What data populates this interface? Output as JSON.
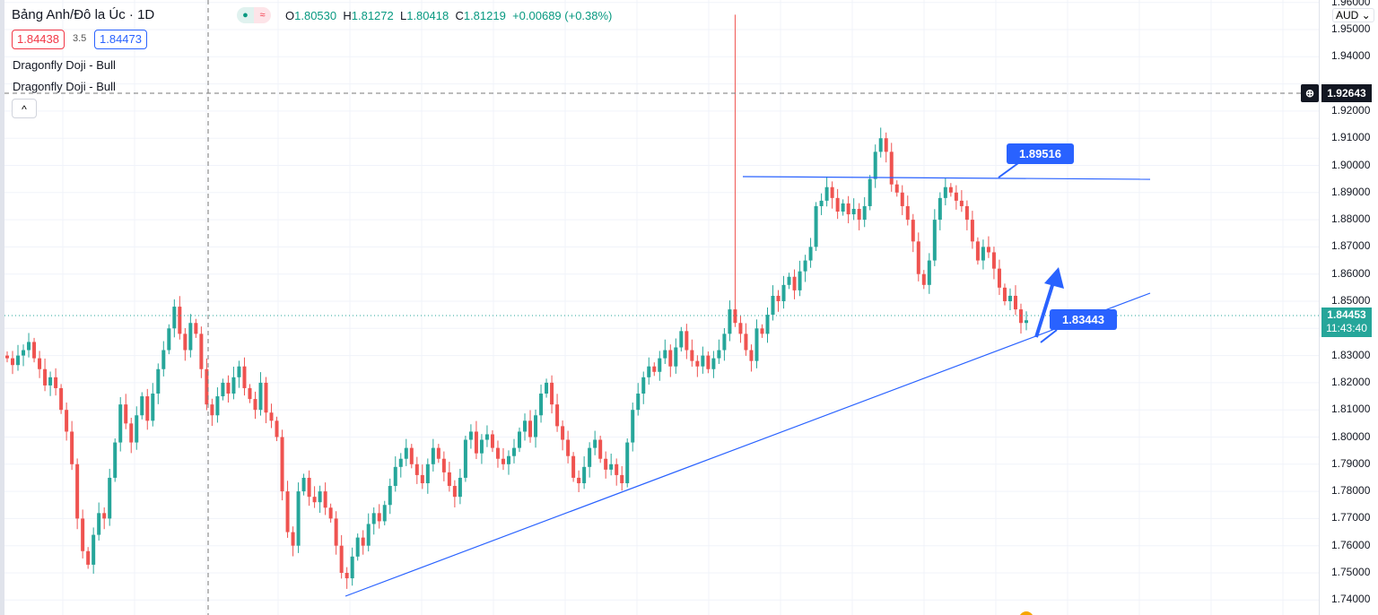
{
  "header": {
    "symbol": "Bảng Anh/Đô la Úc · 1D",
    "ohlc": {
      "o_label": "O",
      "o": "1.80530",
      "h_label": "H",
      "h": "1.81272",
      "l_label": "L",
      "l": "1.80418",
      "c_label": "C",
      "c": "1.81219",
      "change": "+0.00689 (+0.38%)"
    },
    "status_icon": "≈"
  },
  "quotes": {
    "sell": "1.84438",
    "spread": "3.5",
    "buy": "1.84473"
  },
  "patterns": [
    "Dragonfly Doji - Bull",
    "Dragonfly Doji - Bull"
  ],
  "collapse_icon": "^",
  "axis": {
    "currency": "AUD",
    "ticks": [
      "1.96000",
      "1.95000",
      "1.94000",
      "1.92000",
      "1.91000",
      "1.90000",
      "1.89000",
      "1.88000",
      "1.87000",
      "1.86000",
      "1.85000",
      "1.83000",
      "1.82000",
      "1.81000",
      "1.80000",
      "1.79000",
      "1.78000",
      "1.77000",
      "1.76000",
      "1.75000",
      "1.74000"
    ],
    "crosshair_price": "1.92643",
    "last_price": "1.84453",
    "countdown": "11:43:40"
  },
  "annotations": {
    "resistance_label": "1.89516",
    "support_label": "1.83443"
  },
  "colors": {
    "up": "#26a69a",
    "down": "#ef5350",
    "drawing": "#2962ff"
  },
  "chart_data": {
    "type": "candlestick",
    "ylim": [
      1.74,
      1.96
    ],
    "grid": true,
    "spike": {
      "index": 135,
      "high": 1.9555
    },
    "closes": [
      1.829,
      1.8265,
      1.83,
      1.832,
      1.835,
      1.829,
      1.825,
      1.819,
      1.822,
      1.818,
      1.81,
      1.802,
      1.79,
      1.77,
      1.758,
      1.753,
      1.764,
      1.772,
      1.77,
      1.785,
      1.798,
      1.812,
      1.805,
      1.798,
      1.808,
      1.815,
      1.806,
      1.816,
      1.825,
      1.832,
      1.84,
      1.848,
      1.838,
      1.832,
      1.842,
      1.838,
      1.825,
      1.812,
      1.808,
      1.815,
      1.82,
      1.816,
      1.822,
      1.826,
      1.818,
      1.814,
      1.81,
      1.82,
      1.809,
      1.806,
      1.8,
      1.78,
      1.765,
      1.76,
      1.78,
      1.785,
      1.778,
      1.776,
      1.78,
      1.774,
      1.77,
      1.76,
      1.75,
      1.748,
      1.756,
      1.763,
      1.76,
      1.768,
      1.772,
      1.769,
      1.775,
      1.782,
      1.789,
      1.792,
      1.796,
      1.79,
      1.786,
      1.783,
      1.79,
      1.796,
      1.792,
      1.787,
      1.782,
      1.778,
      1.785,
      1.799,
      1.802,
      1.794,
      1.799,
      1.801,
      1.796,
      1.792,
      1.79,
      1.793,
      1.796,
      1.802,
      1.806,
      1.8,
      1.808,
      1.816,
      1.82,
      1.812,
      1.804,
      1.799,
      1.793,
      1.785,
      1.783,
      1.789,
      1.796,
      1.799,
      1.792,
      1.788,
      1.79,
      1.786,
      1.783,
      1.798,
      1.81,
      1.816,
      1.822,
      1.826,
      1.824,
      1.829,
      1.832,
      1.826,
      1.833,
      1.839,
      1.832,
      1.828,
      1.826,
      1.83,
      1.825,
      1.829,
      1.832,
      1.838,
      1.847,
      1.842,
      1.838,
      1.832,
      1.828,
      1.84,
      1.838,
      1.845,
      1.852,
      1.85,
      1.856,
      1.859,
      1.854,
      1.861,
      1.865,
      1.87,
      1.885,
      1.887,
      1.892,
      1.888,
      1.883,
      1.886,
      1.882,
      1.884,
      1.88,
      1.885,
      1.895,
      1.905,
      1.91,
      1.905,
      1.893,
      1.89,
      1.885,
      1.88,
      1.872,
      1.86,
      1.856,
      1.865,
      1.88,
      1.888,
      1.892,
      1.89,
      1.887,
      1.885,
      1.88,
      1.872,
      1.865,
      1.87,
      1.868,
      1.862,
      1.855,
      1.85,
      1.852,
      1.847,
      1.842,
      1.843
    ]
  }
}
